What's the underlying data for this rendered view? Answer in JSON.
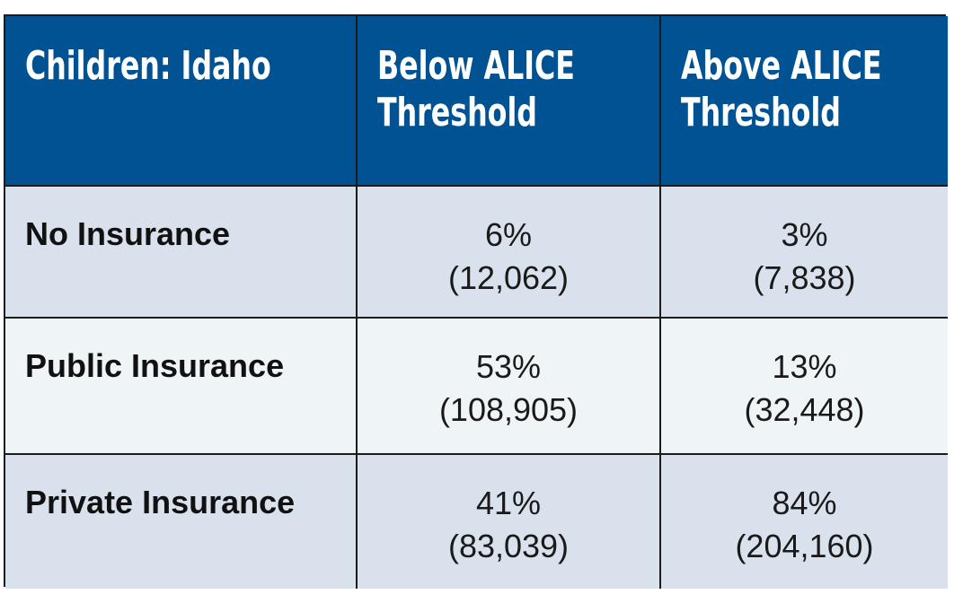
{
  "table": {
    "headers": [
      {
        "line1": "Children: Idaho",
        "line2": ""
      },
      {
        "line1": "Below ALICE",
        "line2": "Threshold"
      },
      {
        "line1": "Above ALICE",
        "line2": "Threshold"
      }
    ],
    "rows": [
      {
        "label": "No Insurance",
        "below": {
          "pct": "6%",
          "count": "(12,062)"
        },
        "above": {
          "pct": "3%",
          "count": "(7,838)"
        }
      },
      {
        "label": "Public Insurance",
        "below": {
          "pct": "53%",
          "count": "(108,905)"
        },
        "above": {
          "pct": "13%",
          "count": "(32,448)"
        }
      },
      {
        "label": "Private Insurance",
        "below": {
          "pct": "41%",
          "count": "(83,039)"
        },
        "above": {
          "pct": "84%",
          "count": "(204,160)"
        }
      }
    ],
    "colors": {
      "header_bg": "#005293",
      "row_shade": "#d9e2ec",
      "row_light": "#eff4f7",
      "border": "#1b1b1b"
    }
  }
}
